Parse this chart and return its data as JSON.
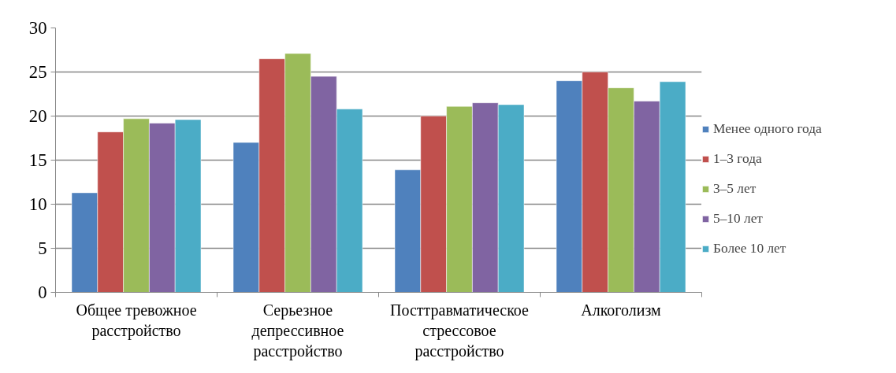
{
  "chart_data": {
    "type": "bar",
    "categories": [
      "Общее тревожное расстройство",
      "Серьезное депрессивное расстройство",
      "Посттравматическое стрессовое расстройство",
      "Алкоголизм"
    ],
    "series": [
      {
        "name": "Менее одного года",
        "color": "#4f81bd",
        "values": [
          11.3,
          17.0,
          13.9,
          24.0
        ]
      },
      {
        "name": "1–3 года",
        "color": "#c0504d",
        "values": [
          18.2,
          26.5,
          20.0,
          25.0
        ]
      },
      {
        "name": "3–5 лет",
        "color": "#9bbb59",
        "values": [
          19.7,
          27.1,
          21.1,
          23.2
        ]
      },
      {
        "name": "5–10 лет",
        "color": "#8064a2",
        "values": [
          19.2,
          24.5,
          21.5,
          21.7
        ]
      },
      {
        "name": "Более 10 лет",
        "color": "#4bacc6",
        "values": [
          19.6,
          20.8,
          21.3,
          23.9
        ]
      }
    ],
    "ylim": [
      0,
      30
    ],
    "yticks": [
      0,
      5,
      10,
      15,
      20,
      25,
      30
    ],
    "grid": "y",
    "legend": "right"
  }
}
